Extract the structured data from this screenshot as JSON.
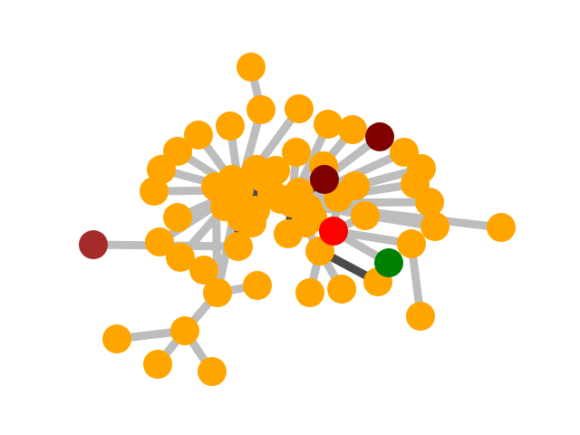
{
  "graph": {
    "colors": {
      "node_default": "#FFA500",
      "node_red": "#FF0000",
      "node_darkred": "#800000",
      "node_brown": "#A52A2A",
      "node_green": "#008000",
      "edge_light": "#BDBDBD",
      "edge_dark": "#4A4A4A"
    },
    "node_ids": [
      "n0",
      "n1",
      "n2",
      "n3",
      "n4",
      "n5",
      "n6",
      "n7",
      "n8",
      "n9",
      "n10",
      "n11",
      "n12",
      "n13",
      "n14",
      "n15",
      "n16",
      "n17",
      "n18",
      "n19",
      "n20",
      "n21",
      "n22",
      "n23",
      "n24",
      "n25",
      "n26",
      "n27",
      "n28",
      "n29",
      "n30",
      "n31",
      "n32",
      "n33",
      "n34",
      "n35",
      "n36",
      "n37",
      "n38",
      "n39",
      "n40",
      "n41",
      "n42",
      "n43",
      "n44",
      "n45",
      "n46",
      "n47",
      "n48",
      "n49",
      "n50",
      "n51",
      "n52",
      "n53",
      "n54",
      "n55",
      "n56",
      "n57",
      "n58"
    ],
    "node_colors": {
      "n6": "node_darkred",
      "n15": "node_darkred",
      "n32": "node_red",
      "n38": "node_green",
      "n54": "node_brown"
    },
    "edges": [
      [
        "n0",
        "n1",
        "edge_light"
      ],
      [
        "n1",
        "n10",
        "edge_light"
      ],
      [
        "n2",
        "n10",
        "edge_light"
      ],
      [
        "n3",
        "n10",
        "edge_light"
      ],
      [
        "n4",
        "n16",
        "edge_light"
      ],
      [
        "n5",
        "n16",
        "edge_light"
      ],
      [
        "n6",
        "n16",
        "edge_light"
      ],
      [
        "n7",
        "n10",
        "edge_light"
      ],
      [
        "n8",
        "n10",
        "edge_light"
      ],
      [
        "n9",
        "n10",
        "edge_light"
      ],
      [
        "n11",
        "n10",
        "edge_light"
      ],
      [
        "n12",
        "n10",
        "edge_light"
      ],
      [
        "n13",
        "n16",
        "edge_light"
      ],
      [
        "n14",
        "n16",
        "edge_light"
      ],
      [
        "n15",
        "n16",
        "edge_dark"
      ],
      [
        "n17",
        "n10",
        "edge_light"
      ],
      [
        "n18",
        "n10",
        "edge_light"
      ],
      [
        "n19",
        "n16",
        "edge_light"
      ],
      [
        "n20",
        "n16",
        "edge_light"
      ],
      [
        "n21",
        "n16",
        "edge_light"
      ],
      [
        "n22",
        "n16",
        "edge_light"
      ],
      [
        "n23",
        "n10",
        "edge_light"
      ],
      [
        "n24",
        "n10",
        "edge_light"
      ],
      [
        "n25",
        "n26",
        "edge_light"
      ],
      [
        "n26",
        "n10",
        "edge_light"
      ],
      [
        "n27",
        "n10",
        "edge_dark"
      ],
      [
        "n28",
        "n10",
        "edge_dark"
      ],
      [
        "n29",
        "n10",
        "edge_dark"
      ],
      [
        "n30",
        "n16",
        "edge_light"
      ],
      [
        "n31",
        "n16",
        "edge_light"
      ],
      [
        "n32",
        "n16",
        "edge_light"
      ],
      [
        "n33",
        "n16",
        "edge_light"
      ],
      [
        "n34",
        "n16",
        "edge_light"
      ],
      [
        "n35",
        "n34",
        "edge_light"
      ],
      [
        "n36",
        "n34",
        "edge_light"
      ],
      [
        "n37",
        "n34",
        "edge_dark"
      ],
      [
        "n38",
        "n32",
        "edge_light"
      ],
      [
        "n39",
        "n32",
        "edge_light"
      ],
      [
        "n40",
        "n32",
        "edge_light"
      ],
      [
        "n41",
        "n32",
        "edge_light"
      ],
      [
        "n42",
        "n32",
        "edge_light"
      ],
      [
        "n43",
        "n16",
        "edge_dark"
      ],
      [
        "n44",
        "n26",
        "edge_light"
      ],
      [
        "n45",
        "n26",
        "edge_light"
      ],
      [
        "n46",
        "n10",
        "edge_dark"
      ],
      [
        "n47",
        "n10",
        "edge_light"
      ],
      [
        "n48",
        "n10",
        "edge_light"
      ],
      [
        "n49",
        "n10",
        "edge_light"
      ],
      [
        "n50",
        "n10",
        "edge_light"
      ],
      [
        "n51",
        "n16",
        "edge_dark"
      ],
      [
        "n52",
        "n10",
        "edge_light"
      ],
      [
        "n53",
        "n10",
        "edge_light"
      ],
      [
        "n54",
        "n29",
        "edge_light"
      ],
      [
        "n55",
        "n10",
        "edge_light"
      ],
      [
        "n56",
        "n10",
        "edge_light"
      ],
      [
        "n57",
        "n16",
        "edge_light"
      ],
      [
        "n58",
        "n40",
        "edge_light"
      ],
      [
        "n10",
        "n16",
        "edge_dark"
      ]
    ]
  }
}
